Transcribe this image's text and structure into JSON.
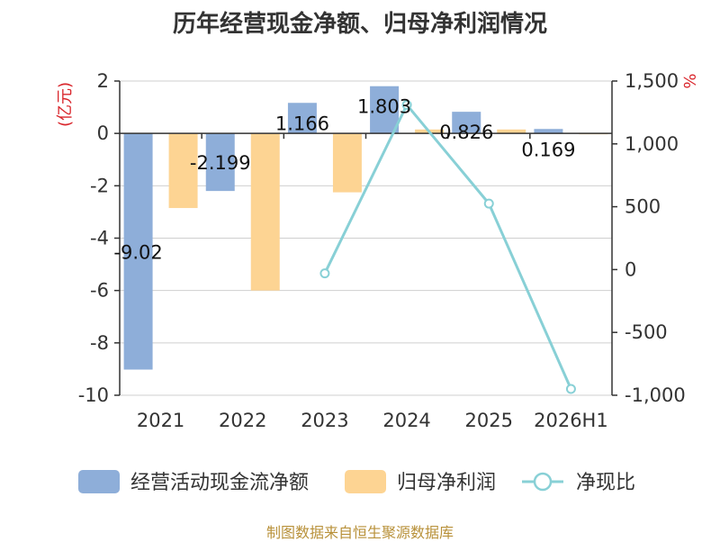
{
  "title": "历年经营现金净额、归母净利润情况",
  "source": "制图数据来自恒生聚源数据库",
  "chart_data": {
    "type": "bar",
    "categories": [
      "2021",
      "2022",
      "2023",
      "2024",
      "2025",
      "2026H1"
    ],
    "y_left": {
      "label": "(亿元)",
      "range": [
        -10,
        2
      ],
      "ticks": [
        2,
        0,
        -2,
        -4,
        -6,
        -8,
        -10
      ],
      "tick_labels": [
        "2",
        "0",
        "-2",
        "-4",
        "-6",
        "-8",
        "-10"
      ]
    },
    "y_right": {
      "label": "%",
      "range": [
        -1000,
        1500
      ],
      "ticks": [
        1500,
        1000,
        500,
        0,
        -500,
        -1000
      ],
      "tick_labels": [
        "1,500",
        "1,000",
        "500",
        "0",
        "-500",
        "-1,000"
      ]
    },
    "series": [
      {
        "name": "经营活动现金流净额",
        "type": "bar",
        "axis": "left",
        "color": "#8eaed9",
        "values": [
          -9.02,
          -2.199,
          1.166,
          1.803,
          0.826,
          0.169
        ],
        "labels": [
          "-9.02",
          "-2.199",
          "1.166",
          "1.803",
          "0.826",
          "0.169"
        ]
      },
      {
        "name": "归母净利润",
        "type": "bar",
        "axis": "left",
        "color": "#fdd493",
        "values": [
          -2.85,
          -6.0,
          -2.25,
          0.15,
          0.15,
          0.0
        ]
      },
      {
        "name": "净现比",
        "type": "line",
        "axis": "right",
        "color": "#88d0d6",
        "values": [
          null,
          null,
          -30,
          1310,
          525,
          -950
        ]
      }
    ],
    "grid": true,
    "legend_position": "bottom"
  }
}
